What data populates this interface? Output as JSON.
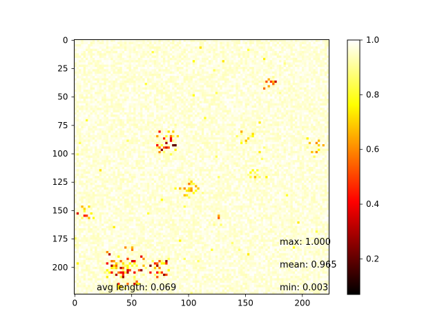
{
  "chart_data": {
    "type": "heatmap",
    "title": "",
    "xlabel": "",
    "ylabel": "",
    "colormap": "hot",
    "grid": false,
    "shape": [
      224,
      224
    ],
    "xlim": [
      0,
      224
    ],
    "ylim": [
      224,
      0
    ],
    "x_ticks": [
      0,
      50,
      100,
      150,
      200
    ],
    "x_tick_labels": [
      "0",
      "50",
      "100",
      "150",
      "200"
    ],
    "y_ticks": [
      0,
      25,
      50,
      75,
      100,
      125,
      150,
      175,
      200
    ],
    "y_tick_labels": [
      "0",
      "25",
      "50",
      "75",
      "100",
      "125",
      "150",
      "175",
      "200"
    ],
    "colorbar": {
      "range": [
        0.07,
        1.0
      ],
      "ticks": [
        0.2,
        0.4,
        0.6,
        0.8,
        1.0
      ],
      "tick_labels": [
        "0.2",
        "0.4",
        "0.6",
        "0.8",
        "1.0"
      ]
    },
    "background_value_range": [
      0.93,
      1.0
    ],
    "low_value_clusters": [
      {
        "x": 80,
        "y": 90,
        "radius": 12,
        "min_value": 0.1
      },
      {
        "x": 8,
        "y": 150,
        "radius": 9,
        "min_value": 0.3
      },
      {
        "x": 42,
        "y": 200,
        "radius": 20,
        "min_value": 0.2
      },
      {
        "x": 75,
        "y": 200,
        "radius": 10,
        "min_value": 0.2
      },
      {
        "x": 170,
        "y": 40,
        "radius": 8,
        "min_value": 0.1
      },
      {
        "x": 100,
        "y": 130,
        "radius": 10,
        "min_value": 0.5
      },
      {
        "x": 125,
        "y": 158,
        "radius": 6,
        "min_value": 0.4
      },
      {
        "x": 210,
        "y": 95,
        "radius": 10,
        "min_value": 0.5
      },
      {
        "x": 150,
        "y": 85,
        "radius": 8,
        "min_value": 0.6
      },
      {
        "x": 160,
        "y": 120,
        "radius": 10,
        "min_value": 0.6
      }
    ],
    "annotations": {
      "max": "max: 1.000",
      "mean": "mean: 0.965",
      "min": "min: 0.003",
      "avg_length": "avg length: 0.069"
    }
  }
}
